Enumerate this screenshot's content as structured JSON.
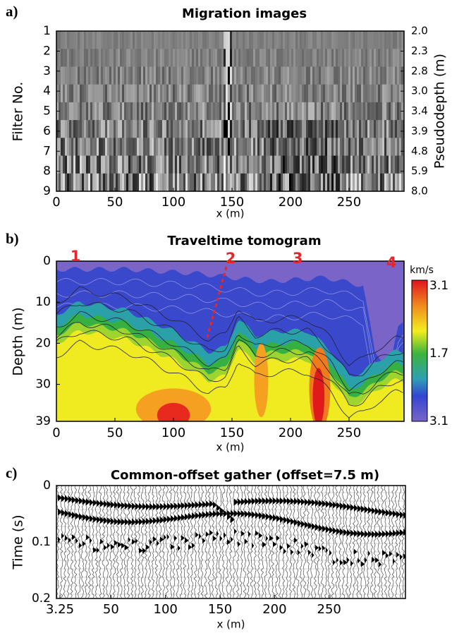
{
  "chart_data": [
    {
      "type": "heatmap",
      "panel_label": "a)",
      "title": "Migration images",
      "xlabel": "x (m)",
      "ylabel": "Filter No.",
      "y2label": "Pseudodepth (m)",
      "xlim": [
        0,
        297
      ],
      "xticks": [
        0,
        50,
        100,
        150,
        200,
        250
      ],
      "ylim": [
        9,
        1
      ],
      "yticks": [
        1,
        2,
        3,
        4,
        5,
        6,
        7,
        8,
        9
      ],
      "y2ticks": [
        {
          "value": 2,
          "label": "2.0"
        },
        2.3,
        2.8,
        {
          "value": 3,
          "label": "3.0"
        },
        3.4,
        3.9,
        4.8,
        5.9,
        {
          "value": 8,
          "label": "8.0"
        }
      ]
    },
    {
      "type": "contour",
      "panel_label": "b)",
      "title": "Traveltime tomogram",
      "xlabel": "x (m)",
      "ylabel": "Depth (m)",
      "xlim": [
        0,
        297
      ],
      "xticks": [
        0,
        50,
        100,
        150,
        200,
        250
      ],
      "ylim": [
        39,
        0
      ],
      "yticks": [
        0,
        10,
        20,
        30,
        39
      ],
      "colorbar": {
        "label": "km/s",
        "ticks": [
          "3.1",
          "1.7",
          "3.1"
        ]
      },
      "annotations": [
        "1",
        "2",
        "3",
        "4"
      ]
    },
    {
      "type": "wiggle",
      "panel_label": "c)",
      "title": "Common-offset gather (offset=7.5 m)",
      "xlabel": "x (m)",
      "ylabel": "Time (s)",
      "xlim": [
        0,
        320
      ],
      "xticks": [
        3.25,
        50,
        100,
        150,
        200,
        250
      ],
      "ylim": [
        0.2,
        0
      ],
      "yticks": [
        0,
        0.1,
        0.2
      ]
    }
  ]
}
